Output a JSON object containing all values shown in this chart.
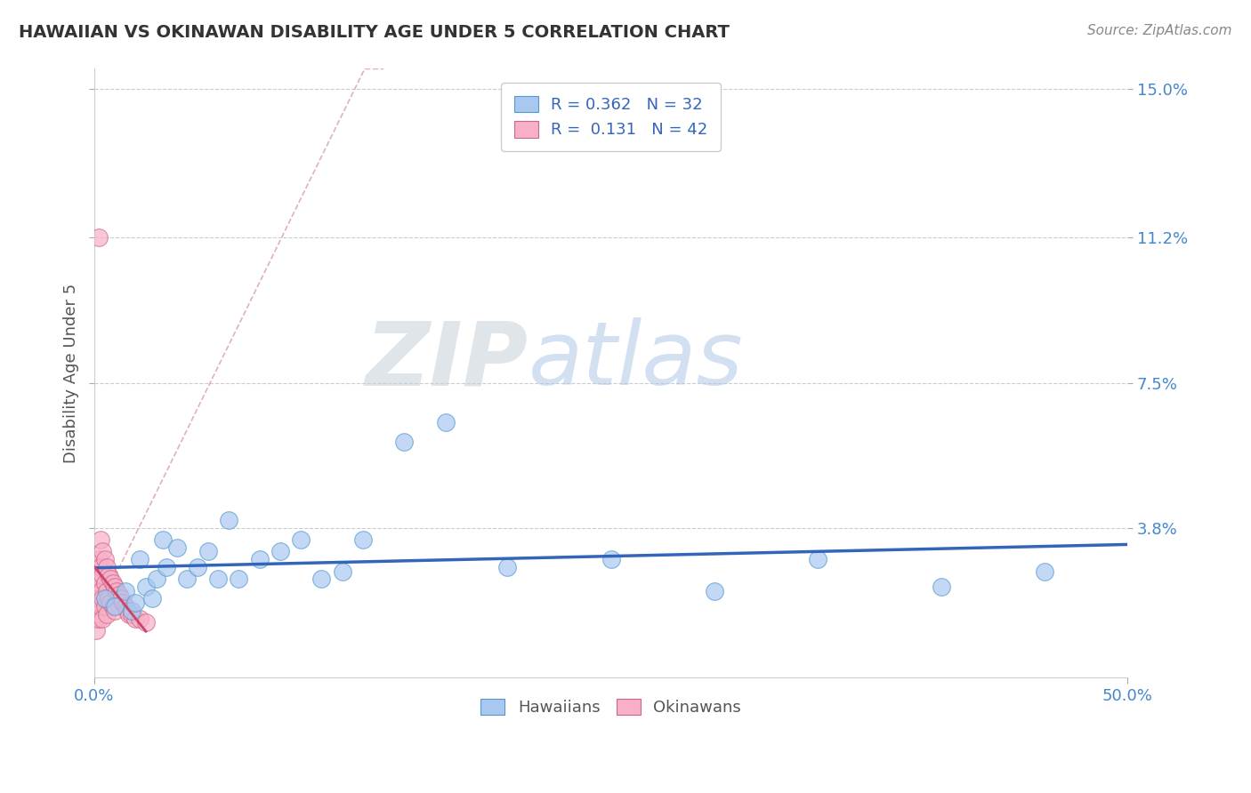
{
  "title": "HAWAIIAN VS OKINAWAN DISABILITY AGE UNDER 5 CORRELATION CHART",
  "source_text": "Source: ZipAtlas.com",
  "ylabel": "Disability Age Under 5",
  "xlim": [
    0.0,
    0.5
  ],
  "ylim": [
    0.0,
    0.155
  ],
  "ytick_values": [
    0.038,
    0.075,
    0.112,
    0.15
  ],
  "ytick_labels": [
    "3.8%",
    "7.5%",
    "11.2%",
    "15.0%"
  ],
  "xtick_values": [
    0.0,
    0.5
  ],
  "xtick_labels": [
    "0.0%",
    "50.0%"
  ],
  "hawaiian_color": "#a8c8f0",
  "hawaiian_edge_color": "#5599cc",
  "okinawan_color": "#f8b0c8",
  "okinawan_edge_color": "#cc6688",
  "hawaiian_line_color": "#3366bb",
  "okinawan_line_color": "#cc4466",
  "ref_line_color": "#ddaaaa",
  "legend_R_hawaiian": "0.362",
  "legend_N_hawaiian": "32",
  "legend_R_okinawan": "0.131",
  "legend_N_okinawan": "42",
  "hawaiian_x": [
    0.005,
    0.01,
    0.015,
    0.018,
    0.02,
    0.022,
    0.025,
    0.028,
    0.03,
    0.033,
    0.035,
    0.04,
    0.045,
    0.05,
    0.055,
    0.06,
    0.065,
    0.07,
    0.08,
    0.09,
    0.1,
    0.11,
    0.12,
    0.13,
    0.15,
    0.17,
    0.2,
    0.25,
    0.3,
    0.35,
    0.41,
    0.46
  ],
  "hawaiian_y": [
    0.02,
    0.018,
    0.022,
    0.017,
    0.019,
    0.03,
    0.023,
    0.02,
    0.025,
    0.035,
    0.028,
    0.033,
    0.025,
    0.028,
    0.032,
    0.025,
    0.04,
    0.025,
    0.03,
    0.032,
    0.035,
    0.025,
    0.027,
    0.035,
    0.06,
    0.065,
    0.028,
    0.03,
    0.022,
    0.03,
    0.023,
    0.027
  ],
  "okinawan_x": [
    0.001,
    0.001,
    0.001,
    0.001,
    0.001,
    0.002,
    0.002,
    0.002,
    0.002,
    0.003,
    0.003,
    0.003,
    0.003,
    0.004,
    0.004,
    0.004,
    0.004,
    0.005,
    0.005,
    0.005,
    0.006,
    0.006,
    0.006,
    0.007,
    0.007,
    0.008,
    0.008,
    0.009,
    0.009,
    0.01,
    0.01,
    0.011,
    0.012,
    0.013,
    0.014,
    0.015,
    0.016,
    0.017,
    0.018,
    0.02,
    0.022,
    0.025
  ],
  "okinawan_y": [
    0.028,
    0.022,
    0.018,
    0.015,
    0.012,
    0.03,
    0.025,
    0.02,
    0.015,
    0.035,
    0.028,
    0.022,
    0.018,
    0.032,
    0.026,
    0.02,
    0.015,
    0.03,
    0.024,
    0.018,
    0.028,
    0.022,
    0.016,
    0.026,
    0.02,
    0.025,
    0.019,
    0.024,
    0.018,
    0.023,
    0.017,
    0.022,
    0.021,
    0.02,
    0.019,
    0.018,
    0.017,
    0.016,
    0.016,
    0.015,
    0.015,
    0.014
  ],
  "okinawan_outlier_x": [
    0.002
  ],
  "okinawan_outlier_y": [
    0.112
  ],
  "watermark_zip_color": "#d0d8e8",
  "watermark_atlas_color": "#b0c8e8",
  "background_color": "#ffffff",
  "grid_color": "#cccccc",
  "grid_style": "--"
}
